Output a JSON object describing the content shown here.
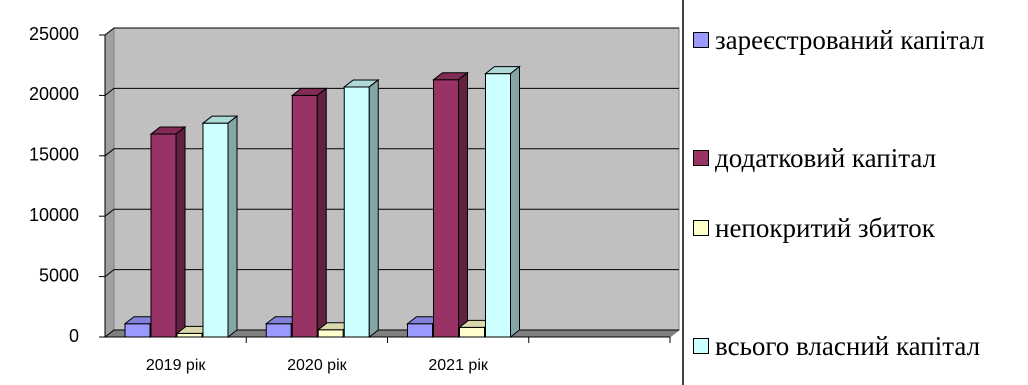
{
  "chart_data": {
    "type": "bar3d",
    "categories": [
      "2019 рік",
      "2020 рік",
      "2021 рік",
      null
    ],
    "series": [
      {
        "name": "зареєстрований капітал",
        "color": "#9999ff",
        "values": [
          1100,
          1100,
          1100,
          null
        ]
      },
      {
        "name": "додатковий капітал",
        "color": "#993366",
        "values": [
          16800,
          20000,
          21300,
          null
        ]
      },
      {
        "name": "непокритий збиток",
        "color": "#ffffcc",
        "values": [
          300,
          600,
          800,
          null
        ]
      },
      {
        "name": "всього власний капітал",
        "color": "#ccffff",
        "values": [
          17700,
          20700,
          21800,
          null
        ]
      }
    ],
    "ylim": [
      0,
      25000
    ],
    "yticks": [
      0,
      5000,
      10000,
      15000,
      20000,
      25000
    ],
    "grid": true
  }
}
